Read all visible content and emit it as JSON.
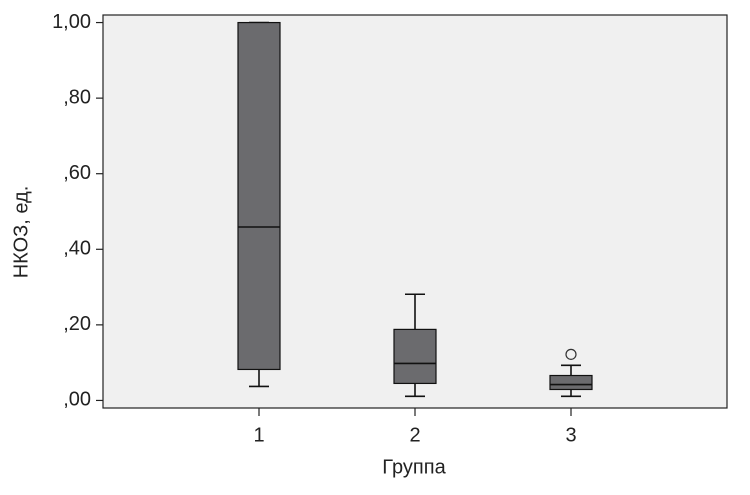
{
  "chart_data": {
    "type": "box",
    "x_label": "Группа",
    "y_label": "НКОЗ, ед.",
    "categories": [
      "1",
      "2",
      "3"
    ],
    "boxes": [
      {
        "whislo": 0.037,
        "q1": 0.082,
        "med": 0.459,
        "q3": 1.0,
        "whishi": 1.0
      },
      {
        "whislo": 0.011,
        "q1": 0.045,
        "med": 0.098,
        "q3": 0.188,
        "whishi": 0.281
      },
      {
        "whislo": 0.011,
        "q1": 0.029,
        "med": 0.042,
        "q3": 0.066,
        "whishi": 0.093,
        "fliers": [
          0.122
        ]
      }
    ],
    "color": "#6b6b6e",
    "ylim": [
      -0.02,
      1.02
    ],
    "yticks": [
      {
        "value": 0,
        "label": ",00"
      },
      {
        "value": 0.2,
        "label": ",20"
      },
      {
        "value": 0.4,
        "label": ",40"
      },
      {
        "value": 0.6,
        "label": ",60"
      },
      {
        "value": 0.8,
        "label": ",80"
      },
      {
        "value": 1,
        "label": "1,00"
      }
    ]
  }
}
